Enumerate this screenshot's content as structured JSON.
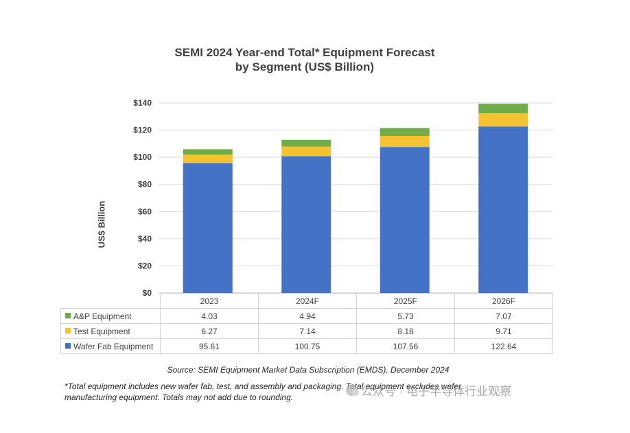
{
  "chart_data": {
    "type": "bar",
    "stacked": true,
    "title": "SEMI 2024 Year-end Total* Equipment Forecast",
    "subtitle": "by Segment (US$ Billion)",
    "ylabel": "US$ Billion",
    "xlabel": "",
    "ylim": [
      0,
      140
    ],
    "yticks": [
      0,
      20,
      40,
      60,
      80,
      100,
      120,
      140
    ],
    "ytick_labels": [
      "$0",
      "$20",
      "$40",
      "$60",
      "$80",
      "$100",
      "$120",
      "$140"
    ],
    "grid": true,
    "legend": "table",
    "categories": [
      "2023",
      "2024F",
      "2025F",
      "2026F"
    ],
    "series": [
      {
        "name": "Wafer Fab Equipment",
        "color": "#4472c4",
        "values": [
          95.61,
          100.75,
          107.56,
          122.64
        ]
      },
      {
        "name": "Test Equipment",
        "color": "#f5c230",
        "values": [
          6.27,
          7.14,
          8.18,
          9.71
        ]
      },
      {
        "name": "A&P Equipment",
        "color": "#70ad47",
        "values": [
          4.03,
          4.94,
          5.73,
          7.07
        ]
      }
    ],
    "table_rows": [
      {
        "name": "A&P Equipment",
        "color": "#70ad47",
        "values": [
          "4.03",
          "4.94",
          "5.73",
          "7.07"
        ]
      },
      {
        "name": "Test Equipment",
        "color": "#f5c230",
        "values": [
          "6.27",
          "7.14",
          "8.18",
          "9.71"
        ]
      },
      {
        "name": "Wafer Fab Equipment",
        "color": "#4472c4",
        "values": [
          "95.61",
          "100.75",
          "107.56",
          "122.64"
        ]
      }
    ]
  },
  "source": "Source: SEMI Equipment Market Data Subscription (EMDS), December 2024",
  "footnote": "*Total equipment includes new wafer fab, test, and assembly and packaging. Total equipment excludes wafer manufacturing equipment. Totals may not add due to rounding.",
  "watermark": "公众号 · 电子半导体行业观察"
}
